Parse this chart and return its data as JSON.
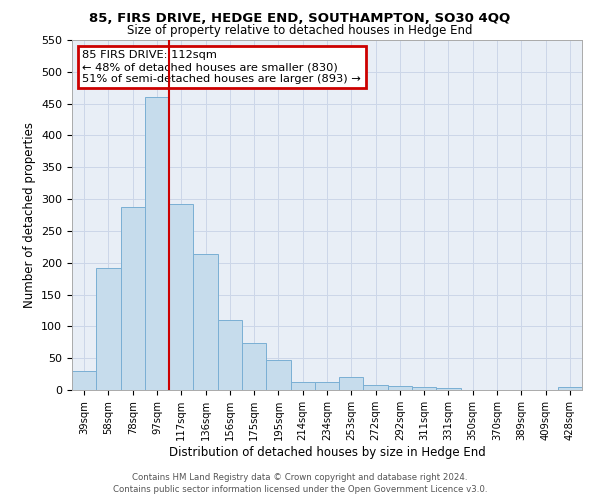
{
  "title": "85, FIRS DRIVE, HEDGE END, SOUTHAMPTON, SO30 4QQ",
  "subtitle": "Size of property relative to detached houses in Hedge End",
  "xlabel": "Distribution of detached houses by size in Hedge End",
  "ylabel": "Number of detached properties",
  "bar_labels": [
    "39sqm",
    "58sqm",
    "78sqm",
    "97sqm",
    "117sqm",
    "136sqm",
    "156sqm",
    "175sqm",
    "195sqm",
    "214sqm",
    "234sqm",
    "253sqm",
    "272sqm",
    "292sqm",
    "311sqm",
    "331sqm",
    "350sqm",
    "370sqm",
    "389sqm",
    "409sqm",
    "428sqm"
  ],
  "bar_values": [
    30,
    192,
    288,
    460,
    293,
    213,
    110,
    74,
    47,
    13,
    13,
    20,
    8,
    7,
    5,
    3,
    0,
    0,
    0,
    0,
    5
  ],
  "bar_color": "#c6dcec",
  "bar_edge_color": "#7aafd4",
  "vline_color": "#cc0000",
  "vline_index": 3.5,
  "ylim": [
    0,
    550
  ],
  "yticks": [
    0,
    50,
    100,
    150,
    200,
    250,
    300,
    350,
    400,
    450,
    500,
    550
  ],
  "annotation_title": "85 FIRS DRIVE: 112sqm",
  "annotation_line1": "← 48% of detached houses are smaller (830)",
  "annotation_line2": "51% of semi-detached houses are larger (893) →",
  "annotation_box_color": "#cc0000",
  "footer_line1": "Contains HM Land Registry data © Crown copyright and database right 2024.",
  "footer_line2": "Contains public sector information licensed under the Open Government Licence v3.0.",
  "grid_color": "#ccd6e8",
  "bg_color": "#e8eef6"
}
